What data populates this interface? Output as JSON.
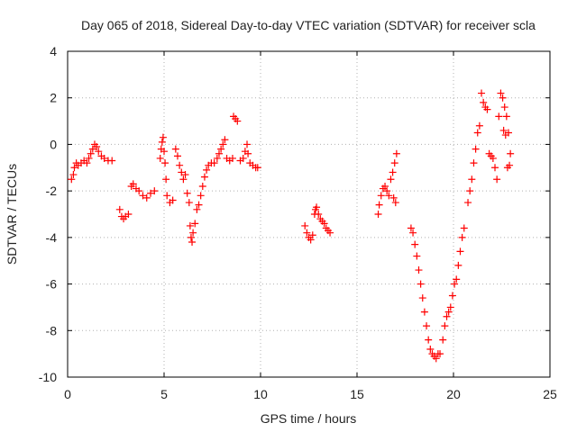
{
  "chart_data": {
    "type": "scatter",
    "title": "Day 065 of 2018, Sidereal Day-to-day VTEC variation (SDTVAR) for receiver scla",
    "xlabel": "GPS time / hours",
    "ylabel": "SDTVAR / TECUs",
    "xlim": [
      0,
      25
    ],
    "ylim": [
      -10,
      4
    ],
    "grid": true,
    "xticks": [
      0,
      5,
      10,
      15,
      20,
      25
    ],
    "xtick_labels": [
      "0",
      "5",
      "10",
      "15",
      "20",
      "25"
    ],
    "yticks": [
      4,
      2,
      0,
      -2,
      -4,
      -6,
      -8,
      -10
    ],
    "ytick_labels": [
      "4",
      "2",
      "0",
      "-2",
      "-4",
      "-6",
      "-8",
      "-10"
    ],
    "marker": "+",
    "color": "#ff0000",
    "series": [
      {
        "name": "SDTVAR",
        "points": [
          [
            0.2,
            -1.5
          ],
          [
            0.3,
            -1.3
          ],
          [
            0.35,
            -1.0
          ],
          [
            0.45,
            -0.8
          ],
          [
            0.55,
            -0.9
          ],
          [
            0.7,
            -0.8
          ],
          [
            0.85,
            -0.7
          ],
          [
            1.0,
            -0.8
          ],
          [
            1.1,
            -0.6
          ],
          [
            1.2,
            -0.4
          ],
          [
            1.3,
            -0.2
          ],
          [
            1.4,
            0.0
          ],
          [
            1.5,
            -0.1
          ],
          [
            1.6,
            -0.3
          ],
          [
            1.75,
            -0.5
          ],
          [
            1.9,
            -0.6
          ],
          [
            2.1,
            -0.7
          ],
          [
            2.3,
            -0.7
          ],
          [
            2.7,
            -2.8
          ],
          [
            2.8,
            -3.1
          ],
          [
            2.9,
            -3.2
          ],
          [
            3.0,
            -3.1
          ],
          [
            3.15,
            -3.0
          ],
          [
            3.3,
            -1.8
          ],
          [
            3.4,
            -1.7
          ],
          [
            3.55,
            -1.9
          ],
          [
            3.7,
            -2.0
          ],
          [
            3.9,
            -2.2
          ],
          [
            4.1,
            -2.3
          ],
          [
            4.3,
            -2.1
          ],
          [
            4.5,
            -2.0
          ],
          [
            4.8,
            -0.6
          ],
          [
            4.85,
            -0.2
          ],
          [
            4.9,
            0.1
          ],
          [
            4.95,
            0.3
          ],
          [
            5.0,
            -0.3
          ],
          [
            5.05,
            -0.8
          ],
          [
            5.1,
            -1.5
          ],
          [
            5.15,
            -2.2
          ],
          [
            5.3,
            -2.5
          ],
          [
            5.45,
            -2.4
          ],
          [
            5.6,
            -0.2
          ],
          [
            5.7,
            -0.5
          ],
          [
            5.8,
            -0.9
          ],
          [
            5.9,
            -1.2
          ],
          [
            6.0,
            -1.5
          ],
          [
            6.1,
            -1.3
          ],
          [
            6.2,
            -2.1
          ],
          [
            6.3,
            -2.5
          ],
          [
            6.35,
            -3.5
          ],
          [
            6.4,
            -4.0
          ],
          [
            6.45,
            -4.2
          ],
          [
            6.5,
            -3.8
          ],
          [
            6.6,
            -3.4
          ],
          [
            6.7,
            -2.8
          ],
          [
            6.8,
            -2.6
          ],
          [
            6.9,
            -2.2
          ],
          [
            7.0,
            -1.8
          ],
          [
            7.1,
            -1.4
          ],
          [
            7.2,
            -1.1
          ],
          [
            7.3,
            -0.9
          ],
          [
            7.45,
            -0.8
          ],
          [
            7.6,
            -0.8
          ],
          [
            7.75,
            -0.6
          ],
          [
            7.85,
            -0.4
          ],
          [
            7.95,
            -0.2
          ],
          [
            8.05,
            0.0
          ],
          [
            8.15,
            0.2
          ],
          [
            8.25,
            -0.6
          ],
          [
            8.4,
            -0.7
          ],
          [
            8.55,
            -0.6
          ],
          [
            8.6,
            1.2
          ],
          [
            8.7,
            1.1
          ],
          [
            8.8,
            1.0
          ],
          [
            8.95,
            -0.7
          ],
          [
            9.1,
            -0.6
          ],
          [
            9.2,
            -0.3
          ],
          [
            9.3,
            0.0
          ],
          [
            9.35,
            -0.4
          ],
          [
            9.45,
            -0.8
          ],
          [
            9.6,
            -0.9
          ],
          [
            9.75,
            -1.0
          ],
          [
            9.85,
            -1.0
          ],
          [
            12.3,
            -3.5
          ],
          [
            12.4,
            -3.8
          ],
          [
            12.5,
            -4.0
          ],
          [
            12.6,
            -4.1
          ],
          [
            12.7,
            -3.9
          ],
          [
            12.8,
            -3.0
          ],
          [
            12.85,
            -2.8
          ],
          [
            12.9,
            -2.7
          ],
          [
            13.0,
            -3.0
          ],
          [
            13.1,
            -3.2
          ],
          [
            13.2,
            -3.3
          ],
          [
            13.3,
            -3.4
          ],
          [
            13.4,
            -3.6
          ],
          [
            13.5,
            -3.7
          ],
          [
            13.6,
            -3.8
          ],
          [
            16.1,
            -3.0
          ],
          [
            16.15,
            -2.6
          ],
          [
            16.25,
            -2.2
          ],
          [
            16.35,
            -1.9
          ],
          [
            16.45,
            -1.8
          ],
          [
            16.55,
            -2.0
          ],
          [
            16.65,
            -2.2
          ],
          [
            16.75,
            -1.5
          ],
          [
            16.85,
            -1.2
          ],
          [
            16.95,
            -0.8
          ],
          [
            17.05,
            -0.4
          ],
          [
            16.9,
            -2.3
          ],
          [
            17.0,
            -2.5
          ],
          [
            17.8,
            -3.6
          ],
          [
            17.9,
            -3.8
          ],
          [
            18.0,
            -4.3
          ],
          [
            18.1,
            -4.8
          ],
          [
            18.2,
            -5.4
          ],
          [
            18.3,
            -6.0
          ],
          [
            18.4,
            -6.6
          ],
          [
            18.5,
            -7.2
          ],
          [
            18.6,
            -7.8
          ],
          [
            18.7,
            -8.4
          ],
          [
            18.8,
            -8.8
          ],
          [
            18.9,
            -9.0
          ],
          [
            19.0,
            -9.1
          ],
          [
            19.1,
            -9.2
          ],
          [
            19.2,
            -9.0
          ],
          [
            19.3,
            -9.0
          ],
          [
            19.45,
            -8.4
          ],
          [
            19.55,
            -7.8
          ],
          [
            19.65,
            -7.4
          ],
          [
            19.75,
            -7.2
          ],
          [
            19.85,
            -7.0
          ],
          [
            19.95,
            -6.5
          ],
          [
            20.05,
            -6.0
          ],
          [
            20.15,
            -5.8
          ],
          [
            20.25,
            -5.2
          ],
          [
            20.35,
            -4.6
          ],
          [
            20.45,
            -4.0
          ],
          [
            20.55,
            -3.6
          ],
          [
            20.75,
            -2.5
          ],
          [
            20.85,
            -2.0
          ],
          [
            20.95,
            -1.5
          ],
          [
            21.05,
            -0.8
          ],
          [
            21.15,
            -0.2
          ],
          [
            21.25,
            0.5
          ],
          [
            21.35,
            0.8
          ],
          [
            21.45,
            2.2
          ],
          [
            21.55,
            1.8
          ],
          [
            21.65,
            1.6
          ],
          [
            21.75,
            1.5
          ],
          [
            21.85,
            -0.4
          ],
          [
            21.95,
            -0.5
          ],
          [
            22.05,
            -0.6
          ],
          [
            22.15,
            -1.0
          ],
          [
            22.25,
            -1.5
          ],
          [
            22.35,
            1.2
          ],
          [
            22.45,
            2.2
          ],
          [
            22.55,
            2.0
          ],
          [
            22.65,
            1.6
          ],
          [
            22.75,
            1.2
          ],
          [
            22.6,
            0.6
          ],
          [
            22.7,
            0.4
          ],
          [
            22.85,
            0.5
          ],
          [
            22.95,
            -0.4
          ],
          [
            22.8,
            -1.0
          ],
          [
            22.9,
            -0.9
          ]
        ]
      }
    ]
  }
}
